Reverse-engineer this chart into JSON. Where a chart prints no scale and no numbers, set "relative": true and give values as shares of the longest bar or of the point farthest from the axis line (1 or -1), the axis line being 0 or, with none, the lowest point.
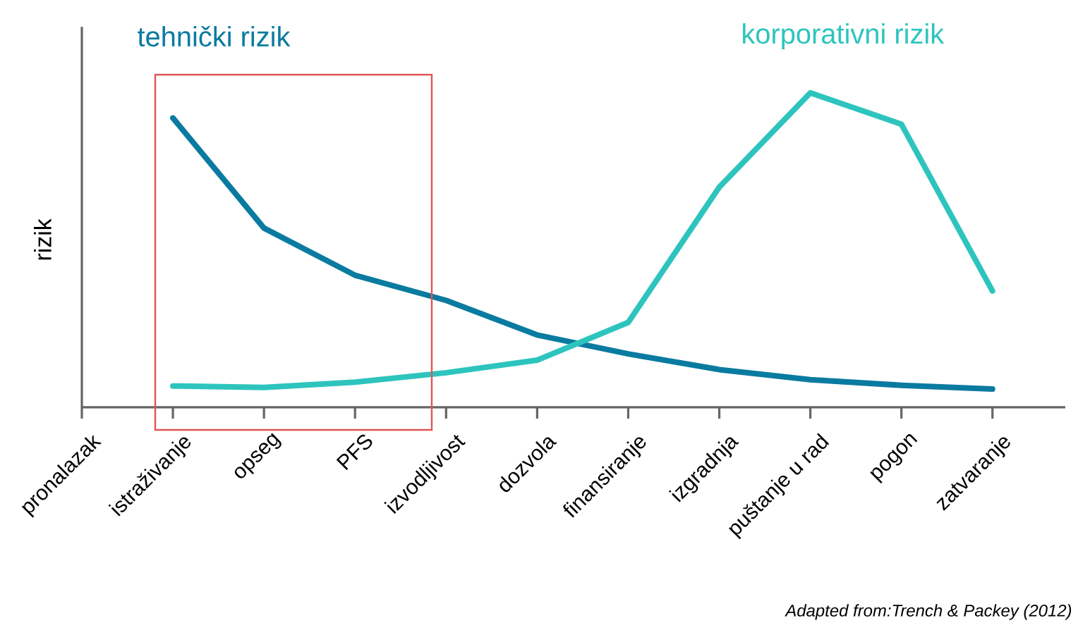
{
  "chart_data": {
    "type": "line",
    "relative": true,
    "ylabel": "rizik",
    "categories": [
      "pronalazak",
      "istraživanje",
      "opseg",
      "PFS",
      "izvodljivost",
      "dozvola",
      "finansiranje",
      "izgradnja",
      "puštanje u rad",
      "pogon",
      "zatvaranje"
    ],
    "series": [
      {
        "name": "tehnički rizik",
        "color": "#0a7ba0",
        "values": [
          null,
          0.92,
          0.57,
          0.42,
          0.34,
          0.23,
          0.17,
          0.12,
          0.088,
          0.07,
          0.058
        ]
      },
      {
        "name": "korporativni rizik",
        "color": "#2ec4be",
        "values": [
          null,
          0.068,
          0.063,
          0.08,
          0.11,
          0.15,
          0.27,
          0.7,
          1.0,
          0.9,
          0.37
        ]
      }
    ],
    "annotations": [
      "Adapted from:Trench & Packey (2012)"
    ]
  }
}
